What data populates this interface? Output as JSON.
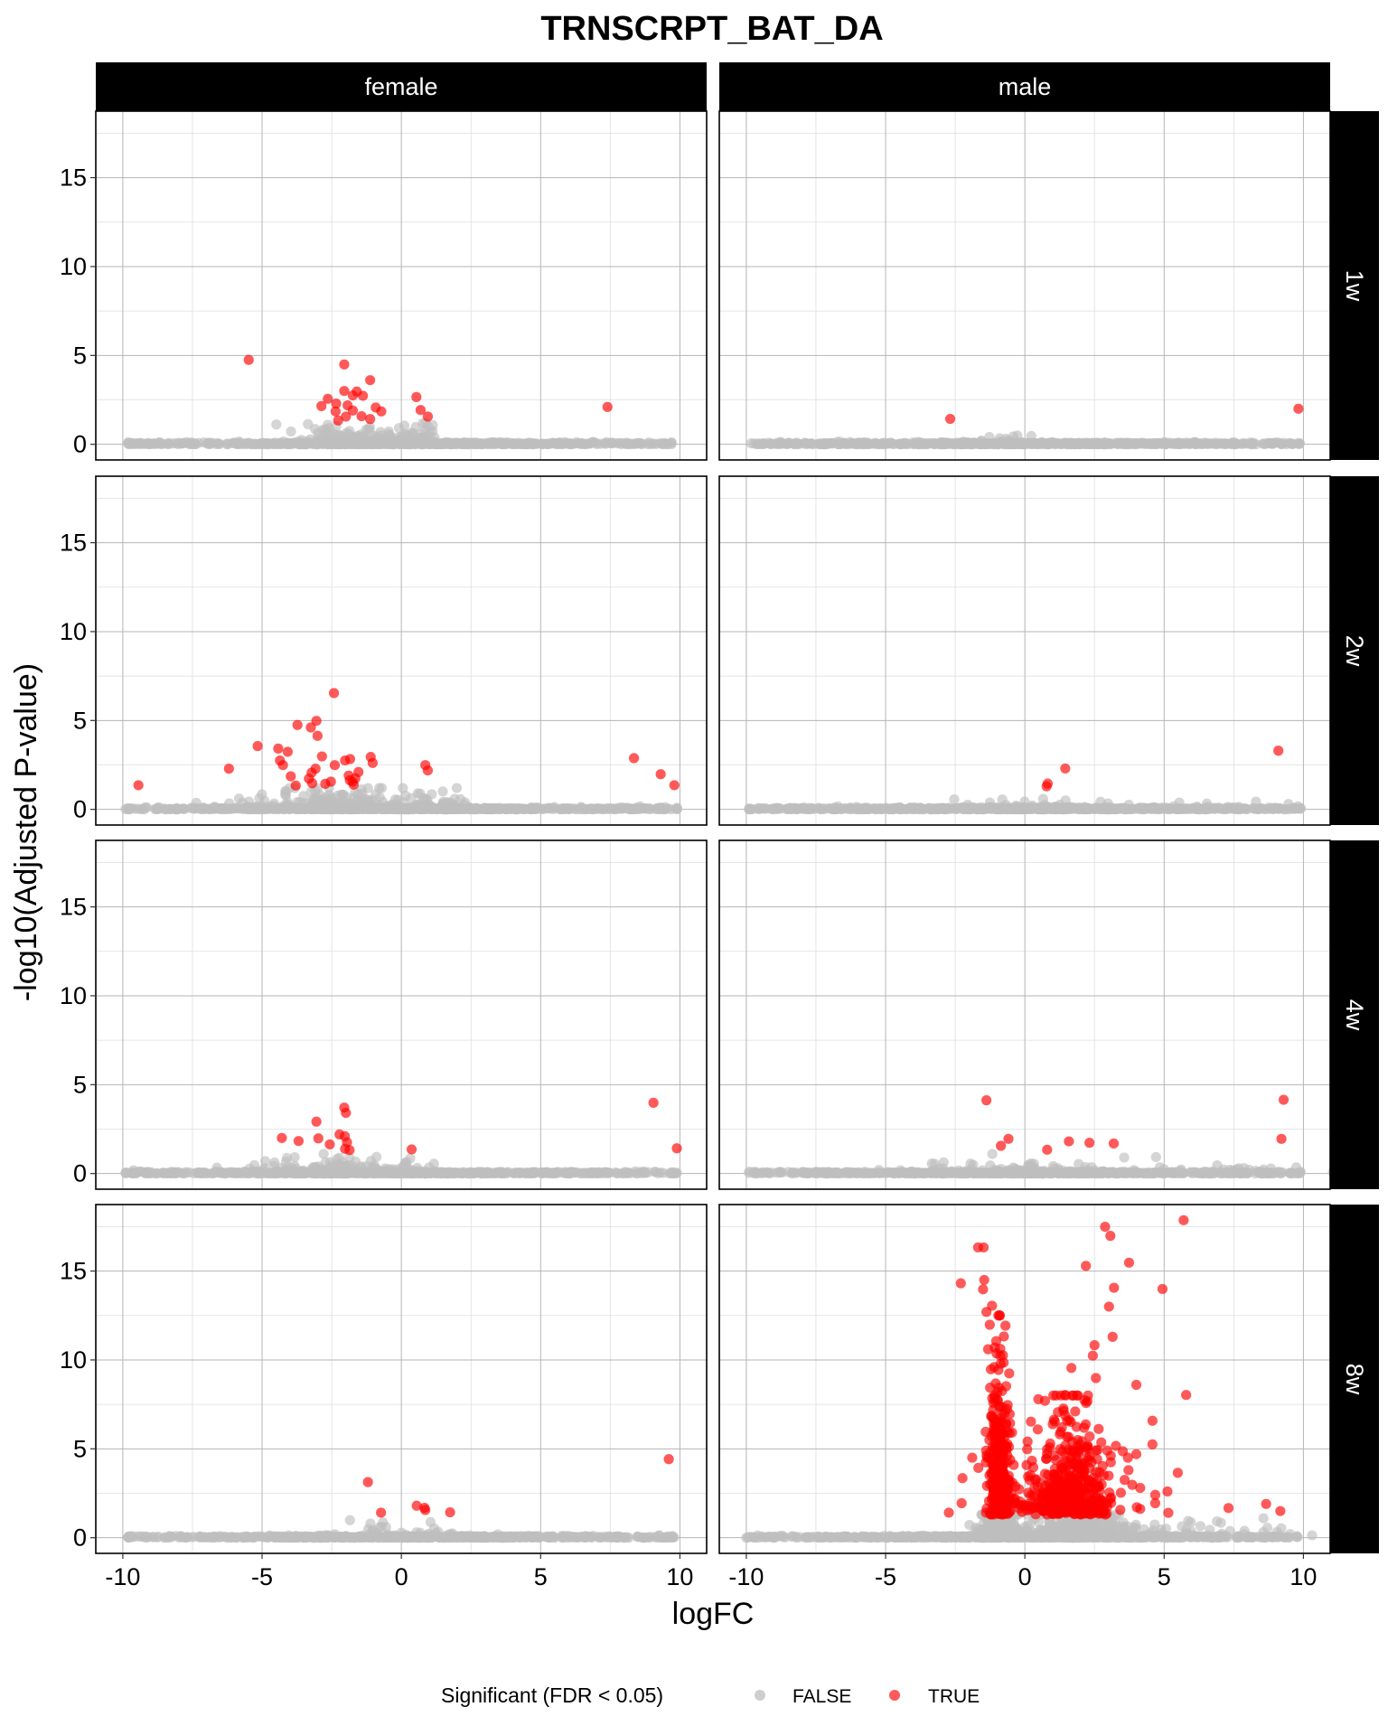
{
  "chart_data": {
    "type": "scatter",
    "title": "TRNSCRPT_BAT_DA",
    "xlabel": "logFC",
    "ylabel": "-log10(Adjusted P-value)",
    "xlim": [
      -10.97,
      10.96
    ],
    "ylim": [
      -0.88,
      18.74
    ],
    "x_ticks": [
      {
        "value": -10,
        "label": "-10"
      },
      {
        "value": -5,
        "label": "-5"
      },
      {
        "value": 0,
        "label": "0"
      },
      {
        "value": 5,
        "label": "5"
      },
      {
        "value": 10,
        "label": "10"
      }
    ],
    "y_ticks": [
      {
        "value": 0,
        "label": "0"
      },
      {
        "value": 5,
        "label": "5"
      },
      {
        "value": 10,
        "label": "10"
      },
      {
        "value": 15,
        "label": "15"
      }
    ],
    "x_minor": [
      -7.5,
      -2.5,
      2.5,
      7.5
    ],
    "y_minor": [
      2.5,
      7.5,
      12.5,
      17.5
    ],
    "grid": true,
    "facet_cols": [
      "female",
      "male"
    ],
    "facet_rows": [
      "1w",
      "2w",
      "4w",
      "8w"
    ],
    "legend": {
      "title": "Significant (FDR < 0.05)",
      "position": "bottom",
      "entries": [
        {
          "label": "FALSE",
          "color": "#BEBEBE"
        },
        {
          "label": "TRUE",
          "color": "#FF0000"
        }
      ]
    },
    "colors": {
      "FALSE": "#BEBEBE",
      "TRUE": "#FF0000",
      "opacity": 0.65
    },
    "panels": [
      {
        "col": "female",
        "row": "1w",
        "significant": [
          [
            -5.48,
            4.75
          ],
          [
            -2.05,
            4.49
          ],
          [
            -1.12,
            3.61
          ],
          [
            -2.05,
            3.0
          ],
          [
            -1.6,
            2.97
          ],
          [
            -1.38,
            2.73
          ],
          [
            -1.74,
            2.75
          ],
          [
            -2.64,
            2.56
          ],
          [
            -2.87,
            2.15
          ],
          [
            -2.34,
            2.29
          ],
          [
            -1.93,
            2.19
          ],
          [
            -1.74,
            1.9
          ],
          [
            -2.36,
            1.85
          ],
          [
            -0.92,
            2.07
          ],
          [
            -0.72,
            1.85
          ],
          [
            -2.27,
            1.34
          ],
          [
            -1.99,
            1.56
          ],
          [
            -1.43,
            1.58
          ],
          [
            -1.12,
            1.42
          ],
          [
            0.54,
            2.66
          ],
          [
            0.69,
            1.93
          ],
          [
            0.95,
            1.56
          ],
          [
            7.4,
            2.1
          ]
        ],
        "non_significant": {
          "x_range": [
            -9.8,
            9.7
          ],
          "n_baseline": 700,
          "humps": [
            {
              "mean": -1.6,
              "sd": 1.1,
              "y_mean": 0.35,
              "y_max": 1.3,
              "n": 160
            },
            {
              "mean": 0.6,
              "sd": 0.4,
              "y_mean": 0.4,
              "y_max": 1.2,
              "n": 40
            }
          ]
        }
      },
      {
        "col": "male",
        "row": "1w",
        "significant": [
          [
            -2.68,
            1.43
          ],
          [
            9.82,
            2.0
          ]
        ],
        "non_significant": {
          "x_range": [
            -9.9,
            9.9
          ],
          "n_baseline": 700,
          "humps": [
            {
              "mean": -0.7,
              "sd": 0.6,
              "y_mean": 0.2,
              "y_max": 1.1,
              "n": 20
            },
            {
              "mean": 3.0,
              "sd": 2.0,
              "y_mean": 0.1,
              "y_max": 0.4,
              "n": 10
            }
          ]
        }
      },
      {
        "col": "female",
        "row": "2w",
        "significant": [
          [
            -2.42,
            6.54
          ],
          [
            -3.05,
            4.98
          ],
          [
            -3.73,
            4.75
          ],
          [
            -3.25,
            4.61
          ],
          [
            -3.01,
            4.14
          ],
          [
            -5.16,
            3.56
          ],
          [
            -4.42,
            3.42
          ],
          [
            -4.08,
            3.24
          ],
          [
            -4.36,
            2.75
          ],
          [
            -4.25,
            2.49
          ],
          [
            -6.19,
            2.29
          ],
          [
            -2.85,
            2.98
          ],
          [
            -2.39,
            2.49
          ],
          [
            -2.02,
            2.75
          ],
          [
            -1.84,
            2.83
          ],
          [
            -1.1,
            2.95
          ],
          [
            -1.03,
            2.61
          ],
          [
            -3.08,
            2.29
          ],
          [
            -3.22,
            2.07
          ],
          [
            -3.97,
            1.86
          ],
          [
            -3.32,
            1.73
          ],
          [
            -3.2,
            1.47
          ],
          [
            -3.79,
            1.34
          ],
          [
            -2.73,
            1.44
          ],
          [
            -2.53,
            1.56
          ],
          [
            -1.89,
            1.9
          ],
          [
            -1.54,
            2.1
          ],
          [
            -1.85,
            1.64
          ],
          [
            -1.71,
            1.39
          ],
          [
            -1.75,
            1.55
          ],
          [
            -1.65,
            1.75
          ],
          [
            0.86,
            2.49
          ],
          [
            0.95,
            2.19
          ],
          [
            -9.44,
            1.36
          ],
          [
            8.35,
            2.88
          ],
          [
            9.31,
            1.98
          ],
          [
            9.8,
            1.36
          ]
        ],
        "non_significant": {
          "x_range": [
            -9.9,
            9.9
          ],
          "n_baseline": 700,
          "humps": [
            {
              "mean": -2.2,
              "sd": 1.8,
              "y_mean": 0.35,
              "y_max": 1.2,
              "n": 200
            },
            {
              "mean": 1.3,
              "sd": 0.6,
              "y_mean": 0.3,
              "y_max": 1.0,
              "n": 40
            }
          ]
        }
      },
      {
        "col": "male",
        "row": "2w",
        "significant": [
          [
            1.45,
            2.3
          ],
          [
            0.82,
            1.45
          ],
          [
            0.78,
            1.3
          ],
          [
            9.1,
            3.3
          ]
        ],
        "non_significant": {
          "x_range": [
            -9.9,
            9.9
          ],
          "n_baseline": 700,
          "humps": [
            {
              "mean": 0.3,
              "sd": 1.8,
              "y_mean": 0.25,
              "y_max": 1.1,
              "n": 40
            },
            {
              "mean": 7.5,
              "sd": 1.0,
              "y_mean": 0.3,
              "y_max": 1.0,
              "n": 8
            }
          ]
        }
      },
      {
        "col": "female",
        "row": "4w",
        "significant": [
          [
            -2.05,
            3.71
          ],
          [
            -1.99,
            3.41
          ],
          [
            -3.05,
            2.92
          ],
          [
            -4.29,
            2.0
          ],
          [
            -3.69,
            1.83
          ],
          [
            -2.98,
            1.98
          ],
          [
            -2.57,
            1.64
          ],
          [
            -2.22,
            2.2
          ],
          [
            -2.03,
            2.1
          ],
          [
            -1.95,
            1.76
          ],
          [
            -2.02,
            1.39
          ],
          [
            -1.86,
            1.32
          ],
          [
            0.37,
            1.36
          ],
          [
            9.05,
            3.98
          ],
          [
            9.89,
            1.42
          ]
        ],
        "non_significant": {
          "x_range": [
            -9.9,
            9.9
          ],
          "n_baseline": 700,
          "humps": [
            {
              "mean": -2.5,
              "sd": 1.4,
              "y_mean": 0.3,
              "y_max": 1.2,
              "n": 140
            },
            {
              "mean": 0.5,
              "sd": 0.4,
              "y_mean": 0.3,
              "y_max": 1.1,
              "n": 30
            }
          ]
        }
      },
      {
        "col": "male",
        "row": "4w",
        "significant": [
          [
            -1.38,
            4.12
          ],
          [
            -0.59,
            1.95
          ],
          [
            -0.86,
            1.56
          ],
          [
            0.8,
            1.34
          ],
          [
            1.58,
            1.81
          ],
          [
            2.32,
            1.73
          ],
          [
            3.19,
            1.69
          ],
          [
            9.29,
            4.15
          ],
          [
            9.21,
            1.95
          ]
        ],
        "non_significant": {
          "x_range": [
            -9.9,
            9.9
          ],
          "n_baseline": 700,
          "humps": [
            {
              "mean": 0.0,
              "sd": 2.5,
              "y_mean": 0.3,
              "y_max": 1.1,
              "n": 80
            },
            {
              "mean": 7.5,
              "sd": 1.5,
              "y_mean": 0.2,
              "y_max": 0.6,
              "n": 20
            }
          ]
        }
      },
      {
        "col": "female",
        "row": "8w",
        "significant": [
          [
            -1.2,
            3.13
          ],
          [
            -0.73,
            1.41
          ],
          [
            0.55,
            1.8
          ],
          [
            0.83,
            1.68
          ],
          [
            0.86,
            1.56
          ],
          [
            1.75,
            1.43
          ],
          [
            9.6,
            4.42
          ]
        ],
        "non_significant": {
          "x_range": [
            -9.8,
            9.8
          ],
          "n_baseline": 700,
          "humps": [
            {
              "mean": 0.0,
              "sd": 1.5,
              "y_mean": 0.25,
              "y_max": 1.2,
              "n": 40
            }
          ]
        }
      },
      {
        "col": "male",
        "row": "8w",
        "significant": [
          [
            5.7,
            17.86
          ],
          [
            2.88,
            17.49
          ],
          [
            3.07,
            16.98
          ],
          [
            -1.68,
            16.33
          ],
          [
            -1.48,
            16.33
          ],
          [
            3.74,
            15.47
          ],
          [
            2.19,
            15.29
          ],
          [
            -2.3,
            14.31
          ],
          [
            -1.46,
            14.5
          ],
          [
            -1.5,
            13.97
          ],
          [
            3.2,
            14.06
          ],
          [
            4.94,
            13.99
          ],
          [
            3.02,
            13.0
          ],
          [
            -1.18,
            13.05
          ],
          [
            -1.38,
            12.7
          ],
          [
            -1.26,
            11.98
          ],
          [
            -1.03,
            11.06
          ],
          [
            -1.32,
            10.6
          ],
          [
            -1.08,
            10.7
          ],
          [
            -0.88,
            10.24
          ],
          [
            -0.76,
            9.85
          ],
          [
            3.15,
            11.3
          ],
          [
            2.5,
            10.83
          ],
          [
            2.44,
            10.24
          ],
          [
            1.67,
            9.55
          ],
          [
            4.0,
            8.6
          ],
          [
            2.55,
            8.98
          ],
          [
            -1.1,
            9.6
          ],
          [
            5.79,
            8.03
          ],
          [
            1.44,
            8.03
          ],
          [
            0.72,
            7.7
          ],
          [
            4.58,
            6.58
          ],
          [
            4.58,
            5.25
          ],
          [
            5.49,
            3.65
          ],
          [
            4.0,
            4.7
          ],
          [
            3.7,
            4.5
          ],
          [
            3.72,
            3.8
          ],
          [
            3.58,
            3.25
          ],
          [
            4.14,
            2.8
          ],
          [
            5.12,
            2.6
          ],
          [
            4.68,
            2.41
          ],
          [
            4.68,
            1.94
          ],
          [
            4.14,
            1.62
          ],
          [
            5.15,
            1.4
          ],
          [
            7.31,
            1.67
          ],
          [
            8.66,
            1.9
          ],
          [
            9.17,
            1.5
          ],
          [
            -2.73,
            1.41
          ],
          [
            -2.24,
            3.35
          ],
          [
            -2.27,
            1.94
          ],
          [
            -1.89,
            4.5
          ],
          [
            -1.35,
            4.5
          ],
          [
            -1.67,
            3.93
          ]
        ],
        "significant_clusters": [
          {
            "mean": -0.9,
            "sd": 0.2,
            "y_min": 1.3,
            "y_mean": 2.4,
            "y_max": 12.5,
            "n": 380
          },
          {
            "mean": 1.6,
            "sd": 0.75,
            "y_min": 1.3,
            "y_mean": 1.6,
            "y_max": 8.0,
            "n": 480
          }
        ],
        "non_significant": {
          "x_range": [
            -10.0,
            9.8
          ],
          "n_baseline": 700,
          "humps": [
            {
              "mean": -0.9,
              "sd": 0.35,
              "y_mean": 0.5,
              "y_max": 1.3,
              "n": 260
            },
            {
              "mean": 1.8,
              "sd": 1.0,
              "y_mean": 0.5,
              "y_max": 1.3,
              "n": 360
            },
            {
              "mean": 5.5,
              "sd": 2.5,
              "y_mean": 0.3,
              "y_max": 1.2,
              "n": 60
            }
          ]
        }
      }
    ]
  }
}
